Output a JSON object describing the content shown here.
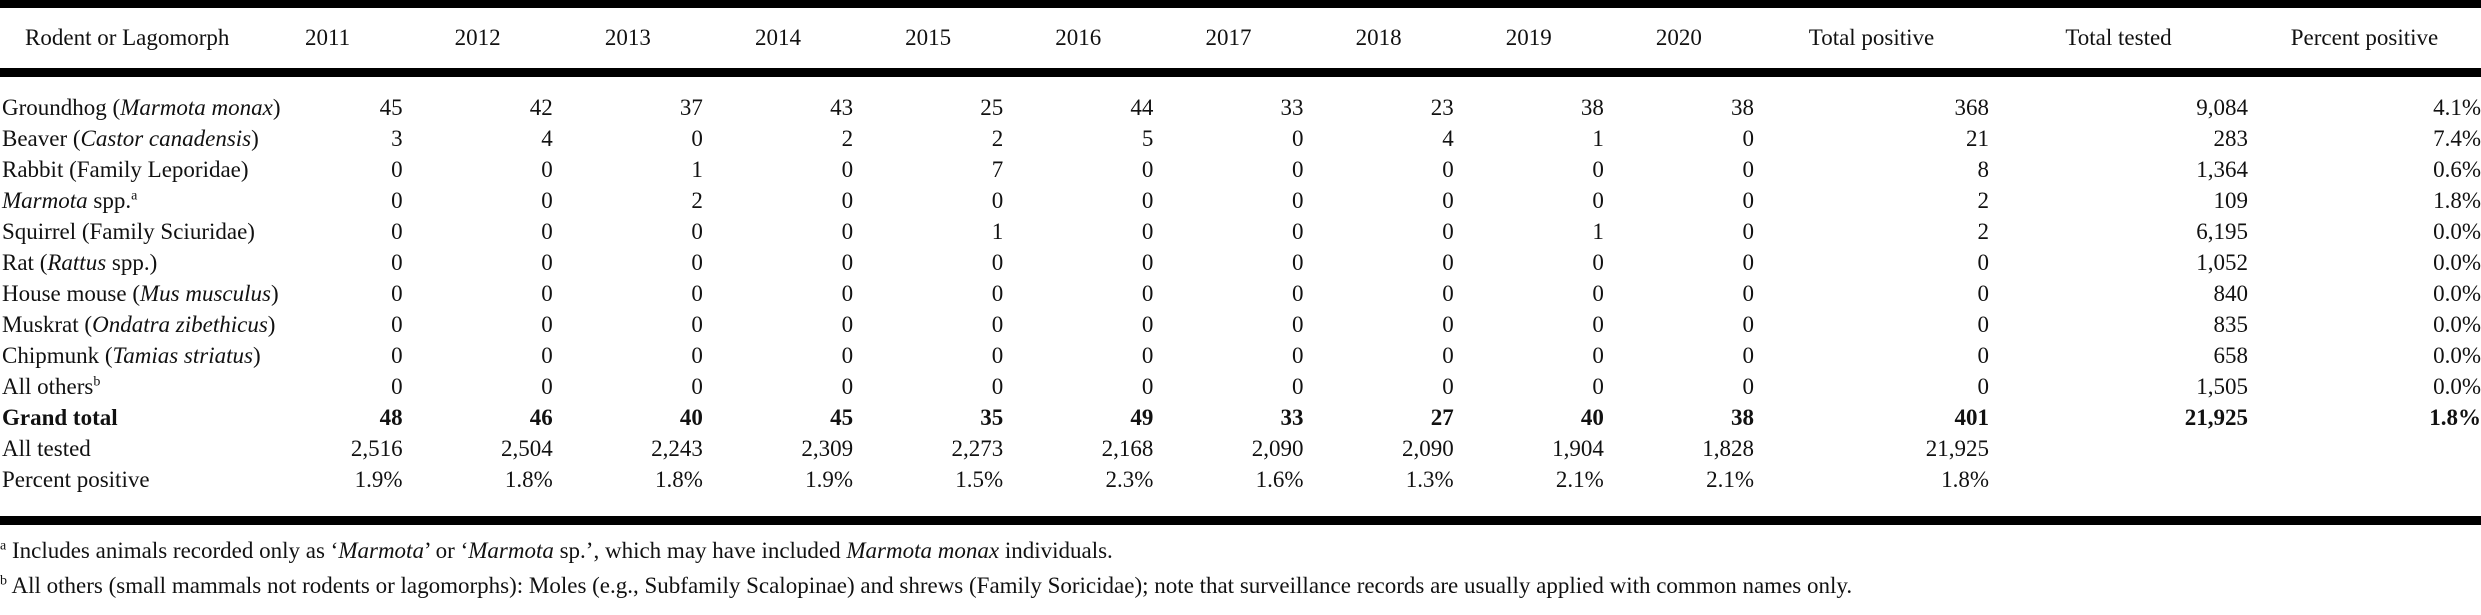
{
  "table": {
    "headers": [
      "Rodent or Lagomorph",
      "2011",
      "2012",
      "2013",
      "2014",
      "2015",
      "2016",
      "2017",
      "2018",
      "2019",
      "2020",
      "Total positive",
      "Total tested",
      "Percent positive"
    ],
    "rows": [
      {
        "name_pre": "Groundhog (",
        "name_italic": "Marmota monax",
        "name_post": ")",
        "sup": "",
        "cells": [
          "45",
          "42",
          "37",
          "43",
          "25",
          "44",
          "33",
          "23",
          "38",
          "38",
          "368",
          "9,084",
          "4.1%"
        ]
      },
      {
        "name_pre": "Beaver (",
        "name_italic": "Castor canadensis",
        "name_post": ")",
        "sup": "",
        "cells": [
          "3",
          "4",
          "0",
          "2",
          "2",
          "5",
          "0",
          "4",
          "1",
          "0",
          "21",
          "283",
          "7.4%"
        ]
      },
      {
        "name_pre": "Rabbit (Family Leporidae)",
        "name_italic": "",
        "name_post": "",
        "sup": "",
        "cells": [
          "0",
          "0",
          "1",
          "0",
          "7",
          "0",
          "0",
          "0",
          "0",
          "0",
          "8",
          "1,364",
          "0.6%"
        ]
      },
      {
        "name_pre": "",
        "name_italic": "Marmota",
        "name_post": " spp.",
        "sup": "a",
        "cells": [
          "0",
          "0",
          "2",
          "0",
          "0",
          "0",
          "0",
          "0",
          "0",
          "0",
          "2",
          "109",
          "1.8%"
        ]
      },
      {
        "name_pre": "Squirrel (Family Sciuridae)",
        "name_italic": "",
        "name_post": "",
        "sup": "",
        "cells": [
          "0",
          "0",
          "0",
          "0",
          "1",
          "0",
          "0",
          "0",
          "1",
          "0",
          "2",
          "6,195",
          "0.0%"
        ]
      },
      {
        "name_pre": "Rat (",
        "name_italic": "Rattus",
        "name_post": " spp.)",
        "sup": "",
        "cells": [
          "0",
          "0",
          "0",
          "0",
          "0",
          "0",
          "0",
          "0",
          "0",
          "0",
          "0",
          "1,052",
          "0.0%"
        ]
      },
      {
        "name_pre": "House mouse (",
        "name_italic": "Mus musculus",
        "name_post": ")",
        "sup": "",
        "cells": [
          "0",
          "0",
          "0",
          "0",
          "0",
          "0",
          "0",
          "0",
          "0",
          "0",
          "0",
          "840",
          "0.0%"
        ]
      },
      {
        "name_pre": "Muskrat (",
        "name_italic": "Ondatra zibethicus",
        "name_post": ")",
        "sup": "",
        "cells": [
          "0",
          "0",
          "0",
          "0",
          "0",
          "0",
          "0",
          "0",
          "0",
          "0",
          "0",
          "835",
          "0.0%"
        ]
      },
      {
        "name_pre": "Chipmunk (",
        "name_italic": "Tamias striatus",
        "name_post": ")",
        "sup": "",
        "cells": [
          "0",
          "0",
          "0",
          "0",
          "0",
          "0",
          "0",
          "0",
          "0",
          "0",
          "0",
          "658",
          "0.0%"
        ]
      },
      {
        "name_pre": "All others",
        "name_italic": "",
        "name_post": "",
        "sup": "b",
        "cells": [
          "0",
          "0",
          "0",
          "0",
          "0",
          "0",
          "0",
          "0",
          "0",
          "0",
          "0",
          "1,505",
          "0.0%"
        ]
      }
    ],
    "grand_total": {
      "label": "Grand total",
      "cells": [
        "48",
        "46",
        "40",
        "45",
        "35",
        "49",
        "33",
        "27",
        "40",
        "38",
        "401",
        "21,925",
        "1.8%"
      ]
    },
    "all_tested": {
      "label": "All tested",
      "cells": [
        "2,516",
        "2,504",
        "2,243",
        "2,309",
        "2,273",
        "2,168",
        "2,090",
        "2,090",
        "1,904",
        "1,828",
        "21,925",
        "",
        ""
      ]
    },
    "percent_positive": {
      "label": "Percent positive",
      "cells": [
        "1.9%",
        "1.8%",
        "1.8%",
        "1.9%",
        "1.5%",
        "2.3%",
        "1.6%",
        "1.3%",
        "2.1%",
        "2.1%",
        "1.8%",
        "",
        ""
      ]
    }
  },
  "notes": [
    {
      "sup": "a",
      "parts": [
        {
          "t": " Includes animals recorded only as ‘",
          "i": false
        },
        {
          "t": "Marmota",
          "i": true
        },
        {
          "t": "’ or ‘",
          "i": false
        },
        {
          "t": "Marmota",
          "i": true
        },
        {
          "t": " sp.’, which may have included ",
          "i": false
        },
        {
          "t": "Marmota monax",
          "i": true
        },
        {
          "t": " individuals.",
          "i": false
        }
      ]
    },
    {
      "sup": "b",
      "parts": [
        {
          "t": " All others (small mammals not rodents or lagomorphs): Moles (e.g., Subfamily Scalopinae) and shrews (Family Soricidae); note that surveillance records are usually applied with common names only.",
          "i": false
        }
      ]
    }
  ]
}
